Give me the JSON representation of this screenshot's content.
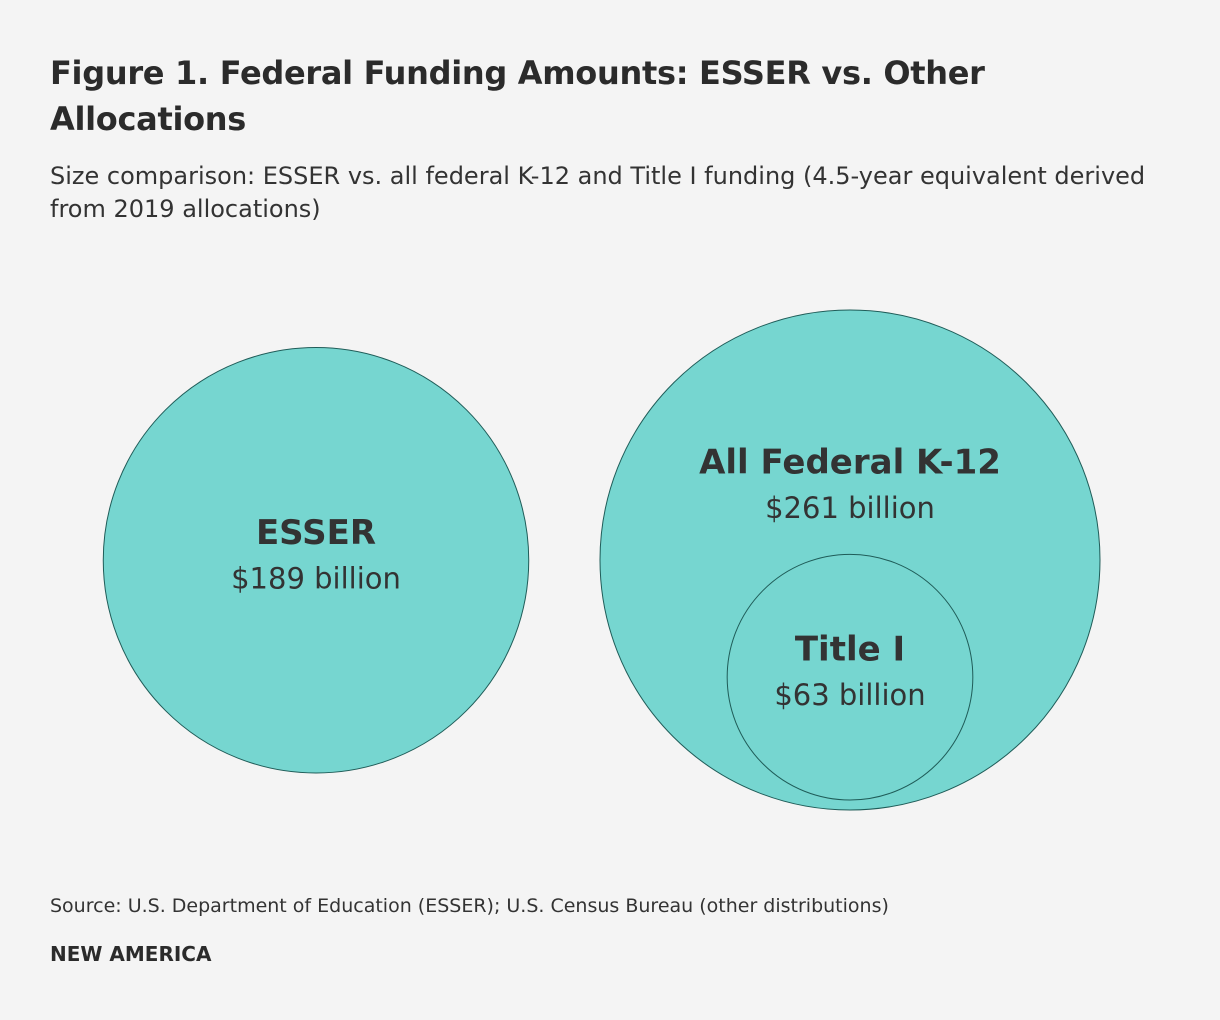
{
  "chart_data": {
    "type": "bubble",
    "title": "Figure 1. Federal Funding Amounts: ESSER vs. Other Allocations",
    "subtitle": "Size comparison: ESSER vs. all federal K-12 and Title I funding (4.5-year equivalent derived from 2019 allocations)",
    "categories": [
      "ESSER",
      "All Federal K-12",
      "Title I"
    ],
    "values": [
      189,
      261,
      63
    ],
    "value_labels": [
      "$189 billion",
      "$261 billion",
      "$63 billion"
    ],
    "color": "#76d6d0",
    "source": "Source: U.S. Department of Education (ESSER); U.S. Census Bureau (other distributions)",
    "brand": "NEW AMERICA"
  }
}
